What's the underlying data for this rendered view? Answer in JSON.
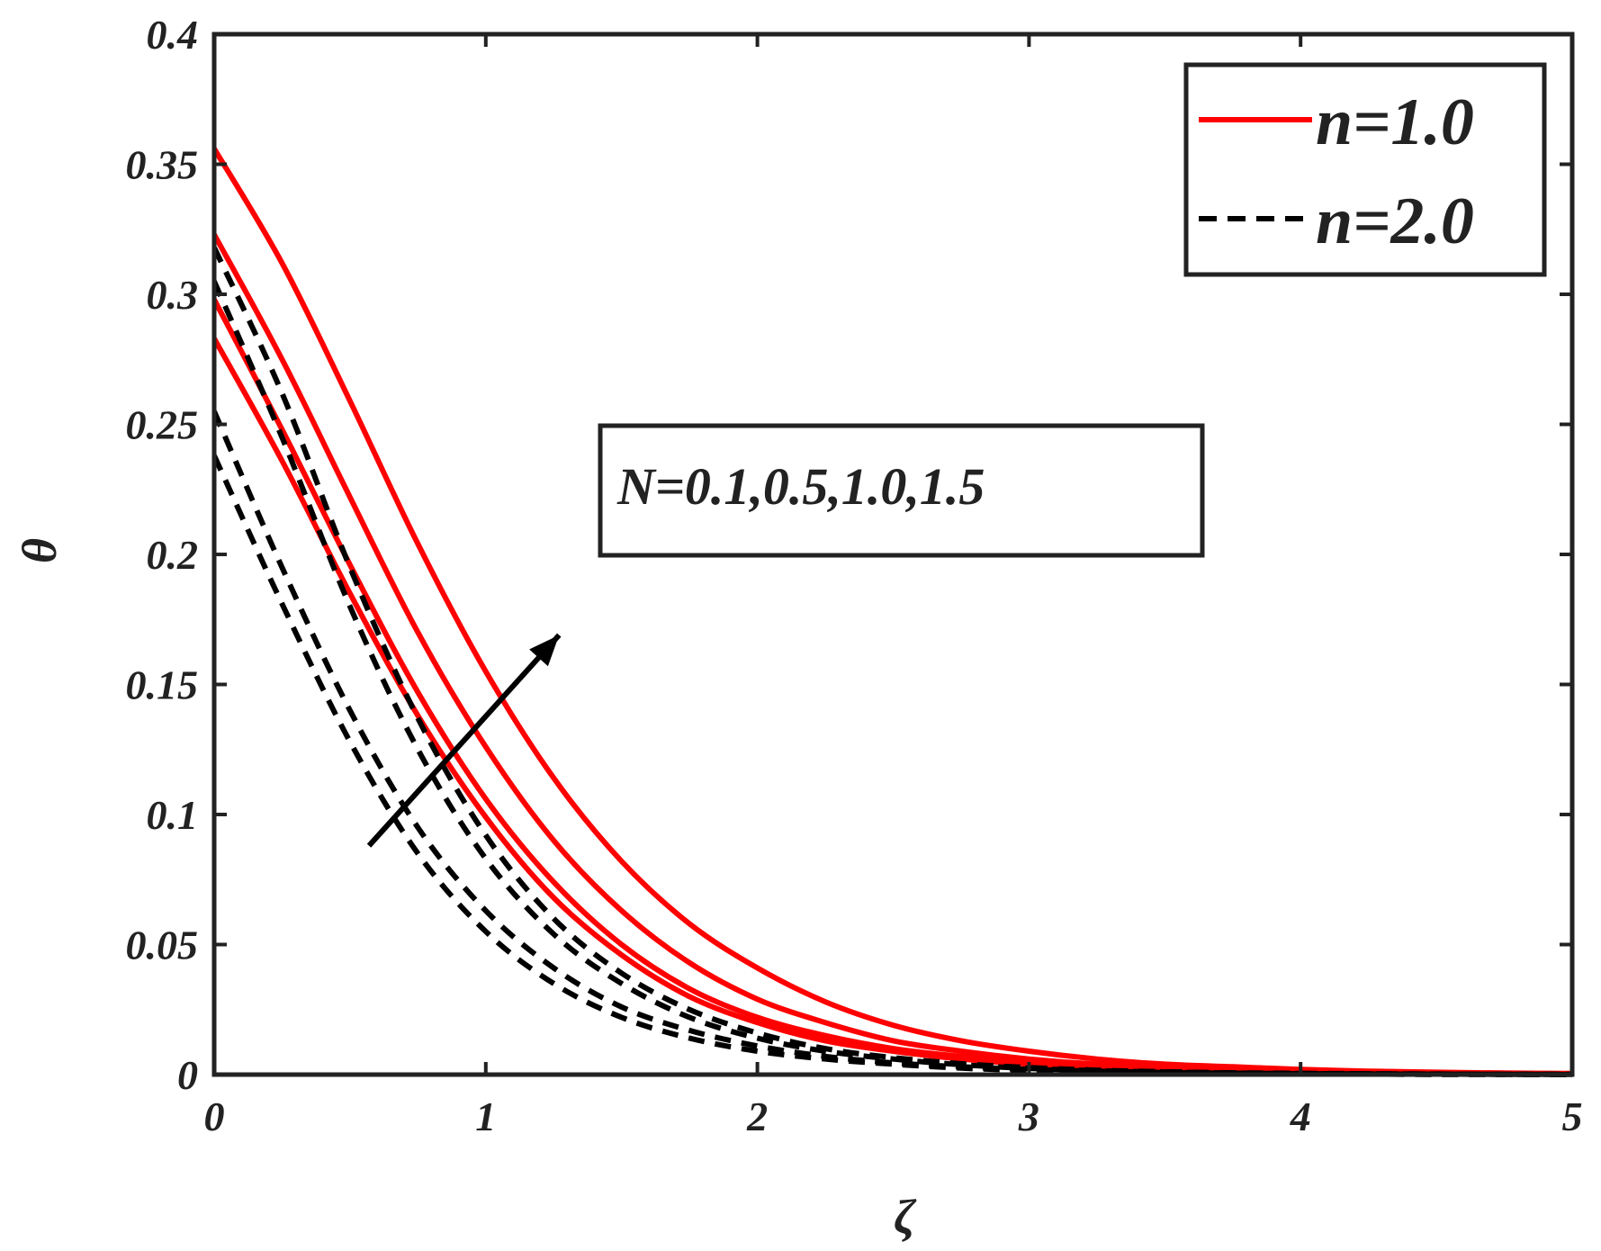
{
  "chart_data": {
    "type": "line",
    "xlabel": "ζ",
    "ylabel": "θ",
    "xlim": [
      0,
      5
    ],
    "ylim": [
      0,
      0.4
    ],
    "xticks": [
      0,
      1,
      2,
      3,
      4,
      5
    ],
    "xtick_labels": [
      "0",
      "1",
      "2",
      "3",
      "4",
      "5"
    ],
    "yticks": [
      0,
      0.05,
      0.1,
      0.15,
      0.2,
      0.25,
      0.3,
      0.35,
      0.4
    ],
    "ytick_labels": [
      "0",
      "0.05",
      "0.1",
      "0.15",
      "0.2",
      "0.25",
      "0.3",
      "0.35",
      "0.4"
    ],
    "grid": false,
    "legend": {
      "position": "top-right",
      "entries": [
        {
          "label": "n=1.0",
          "color": "#ff0000",
          "style": "solid"
        },
        {
          "label": "n=2.0",
          "color": "#000000",
          "style": "dashed"
        }
      ]
    },
    "annotation": {
      "text": "N=0.1,0.5,1.0,1.5",
      "arrow_from": [
        0.57,
        0.088
      ],
      "arrow_to": [
        1.27,
        0.169
      ]
    },
    "x": [
      0,
      0.25,
      0.5,
      0.75,
      1,
      1.25,
      1.5,
      1.75,
      2,
      2.25,
      2.5,
      2.75,
      3,
      3.25,
      3.5,
      3.75,
      4,
      4.25,
      4.5,
      4.75,
      5
    ],
    "series": [
      {
        "group": "n=1.0",
        "style": "solid",
        "color": "#ff0000",
        "values": [
          0.283,
          0.236,
          0.185,
          0.138,
          0.099,
          0.068,
          0.046,
          0.03,
          0.02,
          0.013,
          0.009,
          0.006,
          0.004,
          0.003,
          0.002,
          0.0015,
          0.001,
          0.0007,
          0.0005,
          0.0003,
          0.0002
        ]
      },
      {
        "group": "n=1.0",
        "style": "solid",
        "color": "#ff0000",
        "values": [
          0.298,
          0.248,
          0.196,
          0.147,
          0.106,
          0.074,
          0.05,
          0.033,
          0.022,
          0.015,
          0.01,
          0.007,
          0.005,
          0.003,
          0.002,
          0.0015,
          0.001,
          0.0007,
          0.0005,
          0.0003,
          0.0002
        ]
      },
      {
        "group": "n=1.0",
        "style": "solid",
        "color": "#ff0000",
        "values": [
          0.323,
          0.275,
          0.222,
          0.17,
          0.126,
          0.09,
          0.063,
          0.043,
          0.029,
          0.02,
          0.013,
          0.009,
          0.006,
          0.004,
          0.003,
          0.002,
          0.0013,
          0.0009,
          0.0006,
          0.0004,
          0.0003
        ]
      },
      {
        "group": "n=1.0",
        "style": "solid",
        "color": "#ff0000",
        "values": [
          0.356,
          0.312,
          0.259,
          0.204,
          0.155,
          0.114,
          0.082,
          0.058,
          0.041,
          0.028,
          0.019,
          0.013,
          0.009,
          0.006,
          0.004,
          0.003,
          0.002,
          0.0013,
          0.0009,
          0.0006,
          0.0004
        ]
      },
      {
        "group": "n=2.0",
        "style": "dashed",
        "color": "#000000",
        "values": [
          0.238,
          0.181,
          0.128,
          0.085,
          0.055,
          0.035,
          0.022,
          0.014,
          0.009,
          0.006,
          0.004,
          0.0025,
          0.0016,
          0.001,
          0.0007,
          0.0005,
          0.0003,
          0.0002,
          0.0001,
          0.0001,
          0.0
        ]
      },
      {
        "group": "n=2.0",
        "style": "dashed",
        "color": "#000000",
        "values": [
          0.255,
          0.195,
          0.14,
          0.095,
          0.063,
          0.041,
          0.026,
          0.017,
          0.011,
          0.007,
          0.0045,
          0.003,
          0.002,
          0.0013,
          0.0008,
          0.0005,
          0.0003,
          0.0002,
          0.0001,
          0.0001,
          0.0
        ]
      },
      {
        "group": "n=2.0",
        "style": "dashed",
        "color": "#000000",
        "values": [
          0.305,
          0.245,
          0.18,
          0.125,
          0.083,
          0.054,
          0.035,
          0.022,
          0.014,
          0.009,
          0.006,
          0.0038,
          0.0024,
          0.0015,
          0.001,
          0.0006,
          0.0004,
          0.0003,
          0.0002,
          0.0001,
          0.0001
        ]
      },
      {
        "group": "n=2.0",
        "style": "dashed",
        "color": "#000000",
        "values": [
          0.318,
          0.262,
          0.195,
          0.137,
          0.092,
          0.06,
          0.039,
          0.025,
          0.016,
          0.01,
          0.0065,
          0.0042,
          0.0027,
          0.0017,
          0.0011,
          0.0007,
          0.0005,
          0.0003,
          0.0002,
          0.0001,
          0.0001
        ]
      }
    ]
  }
}
